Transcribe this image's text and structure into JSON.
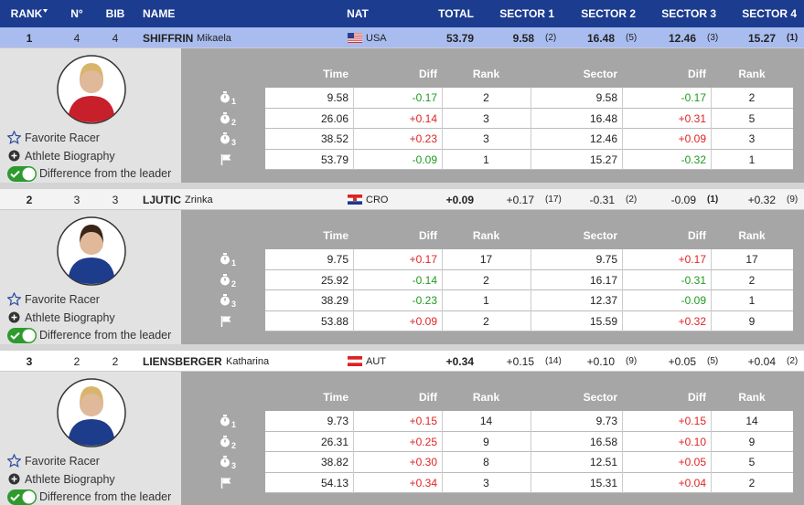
{
  "header": {
    "columns": [
      "RANK",
      "N°",
      "BIB",
      "NAME",
      "NAT",
      "TOTAL",
      "SECTOR 1",
      "SECTOR 2",
      "SECTOR 3",
      "SECTOR 4"
    ]
  },
  "athletes": [
    {
      "rank": "1",
      "number": "4",
      "bib": "4",
      "surname": "SHIFFRIN",
      "first_name": "Mikaela",
      "nat": "USA",
      "total": "53.79",
      "sectors": [
        {
          "value": "9.58",
          "rank": "(2)"
        },
        {
          "value": "16.48",
          "rank": "(5)"
        },
        {
          "value": "12.46",
          "rank": "(3)"
        },
        {
          "value": "15.27",
          "rank": "(1)"
        }
      ],
      "actions": [
        "Favorite Racer",
        "Athlete Biography",
        "Difference from the leader"
      ],
      "split_columns": [
        "Time",
        "Diff",
        "Rank",
        "Sector",
        "Diff",
        "Rank"
      ],
      "splits": [
        {
          "split": "1",
          "cells": [
            "9.58",
            "-0.17",
            "2",
            "9.58",
            "-0.17",
            "2"
          ]
        },
        {
          "split": "2",
          "cells": [
            "26.06",
            "+0.14",
            "3",
            "16.48",
            "+0.31",
            "5"
          ]
        },
        {
          "split": "3",
          "cells": [
            "38.52",
            "+0.23",
            "3",
            "12.46",
            "+0.09",
            "3"
          ]
        },
        {
          "cells": [
            "53.79",
            "-0.09",
            "1",
            "15.27",
            "-0.32",
            "1"
          ]
        }
      ]
    },
    {
      "rank": "2",
      "number": "3",
      "bib": "3",
      "surname": "LJUTIC",
      "first_name": "Zrinka",
      "nat": "CRO",
      "total": "+0.09",
      "sectors": [
        {
          "value": "+0.17",
          "rank": "(17)"
        },
        {
          "value": "-0.31",
          "rank": "(2)"
        },
        {
          "value": "-0.09",
          "rank": "(1)"
        },
        {
          "value": "+0.32",
          "rank": "(9)"
        }
      ],
      "actions": [
        "Favorite Racer",
        "Athlete Biography",
        "Difference from the leader"
      ],
      "split_columns": [
        "Time",
        "Diff",
        "Rank",
        "Sector",
        "Diff",
        "Rank"
      ],
      "splits": [
        {
          "split": "1",
          "cells": [
            "9.75",
            "+0.17",
            "17",
            "9.75",
            "+0.17",
            "17"
          ]
        },
        {
          "split": "2",
          "cells": [
            "25.92",
            "-0.14",
            "2",
            "16.17",
            "-0.31",
            "2"
          ]
        },
        {
          "split": "3",
          "cells": [
            "38.29",
            "-0.23",
            "1",
            "12.37",
            "-0.09",
            "1"
          ]
        },
        {
          "cells": [
            "53.88",
            "+0.09",
            "2",
            "15.59",
            "+0.32",
            "9"
          ]
        }
      ]
    },
    {
      "rank": "3",
      "number": "2",
      "bib": "2",
      "surname": "LIENSBERGER",
      "first_name": "Katharina",
      "nat": "AUT",
      "total": "+0.34",
      "sectors": [
        {
          "value": "+0.15",
          "rank": "(14)"
        },
        {
          "value": "+0.10",
          "rank": "(9)"
        },
        {
          "value": "+0.05",
          "rank": "(5)"
        },
        {
          "value": "+0.04",
          "rank": "(2)"
        }
      ],
      "actions": [
        "Favorite Racer",
        "Athlete Biography",
        "Difference from the leader"
      ],
      "split_columns": [
        "Time",
        "Diff",
        "Rank",
        "Sector",
        "Diff",
        "Rank"
      ],
      "splits": [
        {
          "split": "1",
          "cells": [
            "9.73",
            "+0.15",
            "14",
            "9.73",
            "+0.15",
            "14"
          ]
        },
        {
          "split": "2",
          "cells": [
            "26.31",
            "+0.25",
            "9",
            "16.58",
            "+0.10",
            "9"
          ]
        },
        {
          "split": "3",
          "cells": [
            "38.82",
            "+0.30",
            "8",
            "12.51",
            "+0.05",
            "5"
          ]
        },
        {
          "cells": [
            "54.13",
            "+0.34",
            "3",
            "15.31",
            "+0.04",
            "2"
          ]
        }
      ]
    }
  ]
}
